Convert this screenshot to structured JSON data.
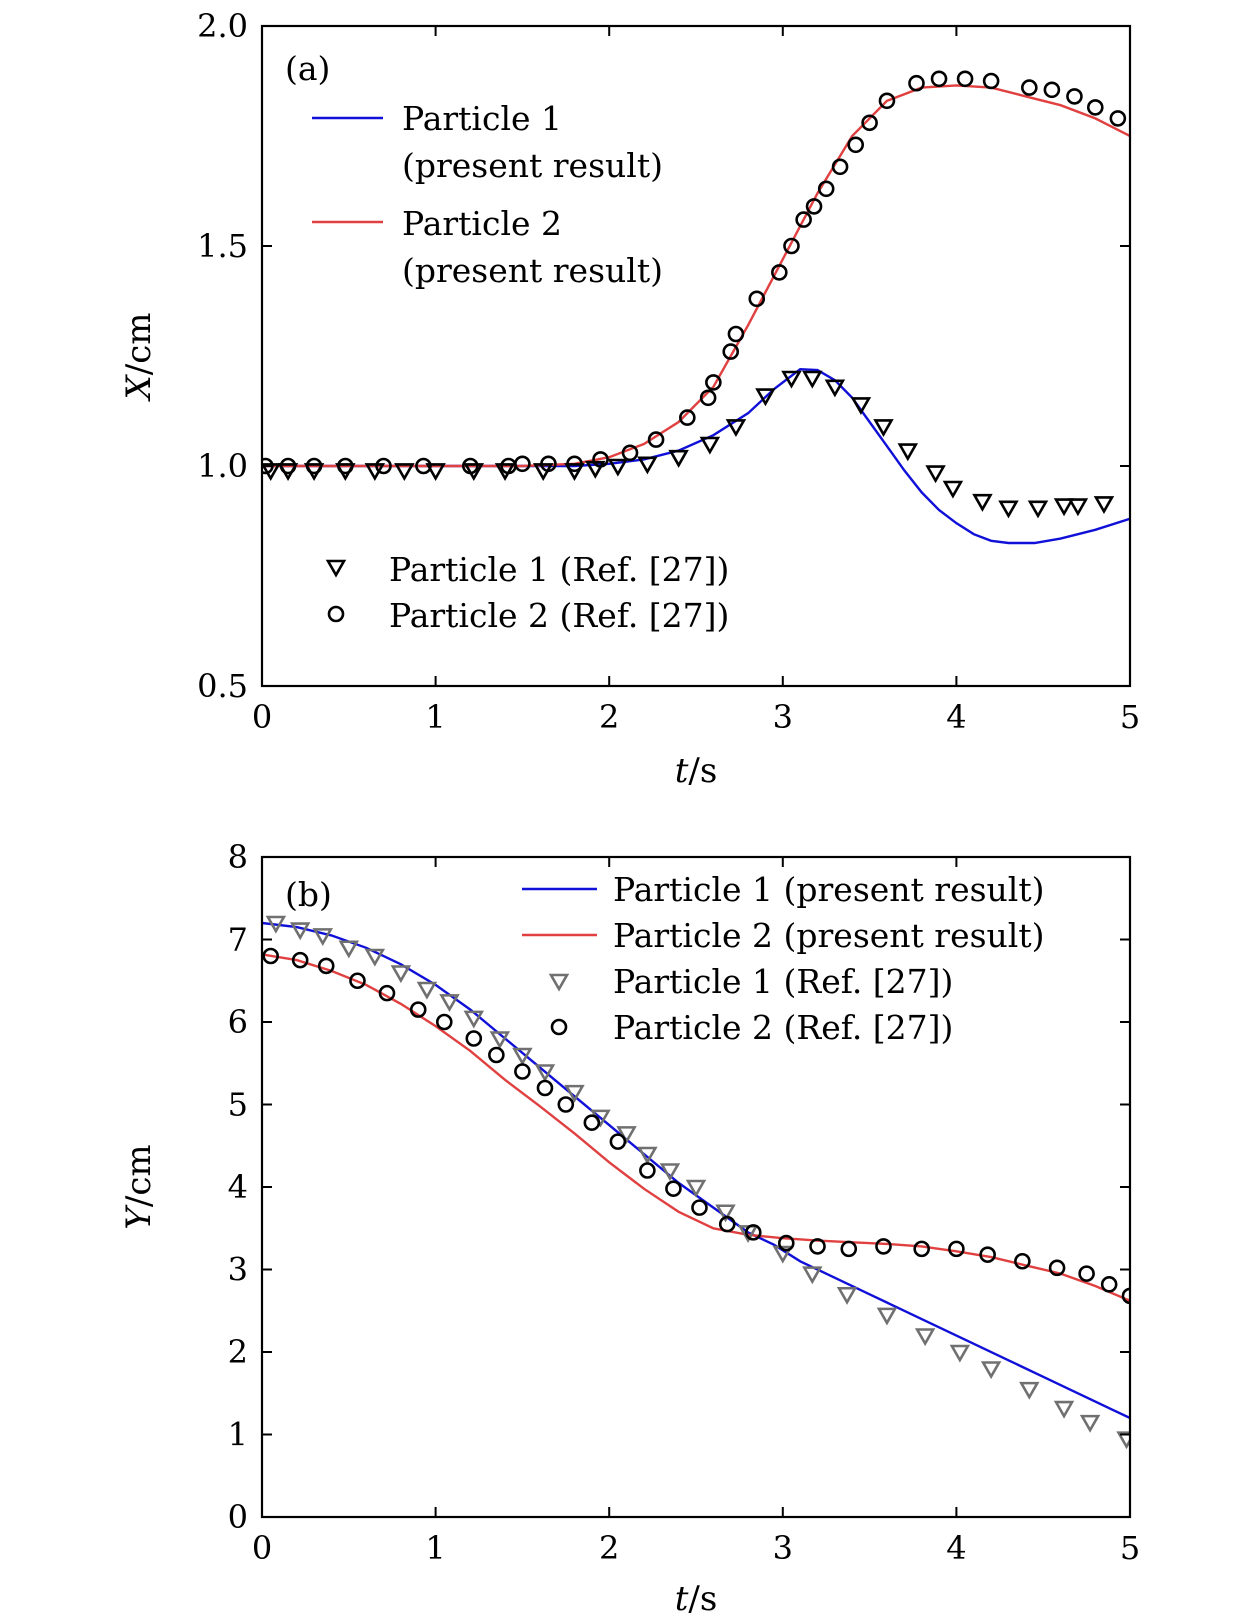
{
  "figure": {
    "colors": {
      "particle1_line": "#1010d8",
      "particle2_line": "#e04040",
      "marker_dark": "#000000",
      "marker_gray": "#707070"
    }
  },
  "chart_data": [
    {
      "type": "line",
      "panel_tag": "(a)",
      "xlabel_var": "t",
      "xlabel_unit": "/s",
      "ylabel_var": "X",
      "ylabel_unit": "/cm",
      "xlim": [
        0,
        5
      ],
      "ylim": [
        0.5,
        2.0
      ],
      "xticks": [
        0,
        1,
        2,
        3,
        4,
        5
      ],
      "xtick_labels": [
        "0",
        "1",
        "2",
        "3",
        "4",
        "5"
      ],
      "yticks": [
        0.5,
        1.0,
        1.5,
        2.0
      ],
      "ytick_labels": [
        "0.5",
        "1.0",
        "1.5",
        "2.0"
      ],
      "legend_lines": [
        {
          "key": "p1",
          "line1": "Particle 1",
          "line2": "(present result)"
        },
        {
          "key": "p2",
          "line1": "Particle 2",
          "line2": "(present result)"
        }
      ],
      "legend_markers": [
        {
          "key": "p1",
          "label": "Particle 1 (Ref. [27])"
        },
        {
          "key": "p2",
          "label": "Particle 2 (Ref. [27])"
        }
      ],
      "series": [
        {
          "name": "Particle 1 (present result)",
          "kind": "line",
          "color_key": "particle1_line",
          "x": [
            0,
            0.5,
            1.0,
            1.5,
            1.8,
            2.0,
            2.2,
            2.4,
            2.6,
            2.8,
            2.95,
            3.1,
            3.2,
            3.3,
            3.4,
            3.5,
            3.6,
            3.7,
            3.8,
            3.9,
            4.0,
            4.1,
            4.2,
            4.3,
            4.45,
            4.6,
            4.8,
            5.0
          ],
          "y": [
            1.0,
            1.0,
            1.0,
            1.0,
            1.0,
            1.005,
            1.015,
            1.035,
            1.07,
            1.12,
            1.175,
            1.22,
            1.218,
            1.195,
            1.155,
            1.1,
            1.045,
            0.99,
            0.94,
            0.9,
            0.87,
            0.845,
            0.83,
            0.825,
            0.825,
            0.835,
            0.855,
            0.88
          ]
        },
        {
          "name": "Particle 2 (present result)",
          "kind": "line",
          "color_key": "particle2_line",
          "x": [
            0,
            0.5,
            1.0,
            1.5,
            1.8,
            2.0,
            2.2,
            2.4,
            2.6,
            2.8,
            3.0,
            3.2,
            3.4,
            3.6,
            3.8,
            4.0,
            4.2,
            4.4,
            4.6,
            4.8,
            5.0
          ],
          "y": [
            1.0,
            1.0,
            1.0,
            1.0,
            1.005,
            1.02,
            1.05,
            1.1,
            1.18,
            1.32,
            1.47,
            1.62,
            1.75,
            1.83,
            1.86,
            1.865,
            1.86,
            1.84,
            1.82,
            1.79,
            1.75
          ]
        },
        {
          "name": "Particle 1 (Ref. [27])",
          "kind": "triangle",
          "color_key": "marker_dark",
          "x": [
            0.05,
            0.15,
            0.3,
            0.48,
            0.65,
            0.82,
            1.0,
            1.22,
            1.4,
            1.62,
            1.8,
            1.92,
            2.05,
            2.22,
            2.4,
            2.58,
            2.73,
            2.9,
            3.05,
            3.17,
            3.3,
            3.45,
            3.58,
            3.72,
            3.88,
            3.98,
            4.15,
            4.3,
            4.47,
            4.62,
            4.7,
            4.85
          ],
          "y": [
            0.99,
            0.99,
            0.99,
            0.99,
            0.99,
            0.99,
            0.99,
            0.99,
            0.99,
            0.99,
            0.99,
            0.995,
            1.0,
            1.005,
            1.02,
            1.05,
            1.09,
            1.16,
            1.2,
            1.2,
            1.18,
            1.14,
            1.09,
            1.035,
            0.985,
            0.95,
            0.92,
            0.905,
            0.905,
            0.91,
            0.91,
            0.915
          ]
        },
        {
          "name": "Particle 2 (Ref. [27])",
          "kind": "circle",
          "color_key": "marker_dark",
          "x": [
            0.02,
            0.15,
            0.3,
            0.48,
            0.7,
            0.93,
            1.2,
            1.42,
            1.5,
            1.65,
            1.8,
            1.95,
            2.12,
            2.27,
            2.45,
            2.57,
            2.6,
            2.7,
            2.73,
            2.85,
            2.98,
            3.05,
            3.12,
            3.18,
            3.25,
            3.33,
            3.42,
            3.5,
            3.6,
            3.77,
            3.9,
            4.05,
            4.2,
            4.42,
            4.55,
            4.68,
            4.8,
            4.93
          ],
          "y": [
            1.0,
            1.0,
            1.0,
            1.0,
            1.0,
            1.0,
            1.0,
            1.0,
            1.005,
            1.005,
            1.005,
            1.015,
            1.03,
            1.06,
            1.11,
            1.155,
            1.19,
            1.26,
            1.3,
            1.38,
            1.44,
            1.5,
            1.56,
            1.59,
            1.63,
            1.68,
            1.73,
            1.78,
            1.83,
            1.87,
            1.88,
            1.88,
            1.875,
            1.86,
            1.855,
            1.84,
            1.815,
            1.79
          ]
        }
      ]
    },
    {
      "type": "line",
      "panel_tag": "(b)",
      "xlabel_var": "t",
      "xlabel_unit": "/s",
      "ylabel_var": "Y",
      "ylabel_unit": "/cm",
      "xlim": [
        0,
        5
      ],
      "ylim": [
        0,
        8
      ],
      "xticks": [
        0,
        1,
        2,
        3,
        4,
        5
      ],
      "xtick_labels": [
        "0",
        "1",
        "2",
        "3",
        "4",
        "5"
      ],
      "yticks": [
        0,
        1,
        2,
        3,
        4,
        5,
        6,
        7,
        8
      ],
      "ytick_labels": [
        "0",
        "1",
        "2",
        "3",
        "4",
        "5",
        "6",
        "7",
        "8"
      ],
      "legend": [
        {
          "key": "p1_line",
          "label": "Particle 1 (present result)"
        },
        {
          "key": "p2_line",
          "label": "Particle 2 (present result)"
        },
        {
          "key": "p1_ref",
          "label": "Particle 1 (Ref. [27])"
        },
        {
          "key": "p2_ref",
          "label": "Particle 2 (Ref. [27])"
        }
      ],
      "series": [
        {
          "name": "Particle 1 (present result)",
          "kind": "line",
          "color_key": "particle1_line",
          "x": [
            0,
            0.2,
            0.4,
            0.6,
            0.8,
            1.0,
            1.2,
            1.4,
            1.6,
            1.8,
            2.0,
            2.2,
            2.4,
            2.6,
            2.8,
            2.95,
            3.1,
            3.3,
            3.5,
            3.7,
            3.9,
            4.1,
            4.3,
            4.5,
            4.7,
            4.9,
            5.0
          ],
          "y": [
            7.2,
            7.15,
            7.05,
            6.9,
            6.7,
            6.45,
            6.15,
            5.8,
            5.45,
            5.1,
            4.75,
            4.4,
            4.05,
            3.75,
            3.45,
            3.3,
            3.1,
            2.9,
            2.7,
            2.5,
            2.3,
            2.1,
            1.9,
            1.7,
            1.5,
            1.3,
            1.2
          ]
        },
        {
          "name": "Particle 2 (present result)",
          "kind": "line",
          "color_key": "particle2_line",
          "x": [
            0,
            0.2,
            0.4,
            0.6,
            0.8,
            1.0,
            1.2,
            1.4,
            1.6,
            1.8,
            2.0,
            2.2,
            2.4,
            2.6,
            2.8,
            3.0,
            3.2,
            3.4,
            3.6,
            3.8,
            4.0,
            4.2,
            4.4,
            4.6,
            4.8,
            5.0
          ],
          "y": [
            6.82,
            6.75,
            6.62,
            6.45,
            6.22,
            5.95,
            5.65,
            5.3,
            4.98,
            4.65,
            4.3,
            3.98,
            3.7,
            3.5,
            3.42,
            3.38,
            3.35,
            3.33,
            3.31,
            3.28,
            3.22,
            3.15,
            3.05,
            2.95,
            2.8,
            2.62
          ]
        },
        {
          "name": "Particle 1 (Ref. [27])",
          "kind": "triangle",
          "color_key": "marker_gray",
          "x": [
            0.08,
            0.22,
            0.35,
            0.5,
            0.65,
            0.8,
            0.95,
            1.08,
            1.22,
            1.37,
            1.5,
            1.63,
            1.8,
            1.95,
            2.1,
            2.22,
            2.35,
            2.5,
            2.67,
            2.8,
            3.0,
            3.17,
            3.37,
            3.6,
            3.82,
            4.02,
            4.2,
            4.42,
            4.62,
            4.77,
            4.98
          ],
          "y": [
            7.2,
            7.12,
            7.05,
            6.9,
            6.8,
            6.6,
            6.4,
            6.25,
            6.05,
            5.8,
            5.6,
            5.4,
            5.15,
            4.85,
            4.65,
            4.4,
            4.2,
            4.0,
            3.7,
            3.45,
            3.2,
            2.95,
            2.7,
            2.45,
            2.2,
            2.0,
            1.8,
            1.55,
            1.32,
            1.15,
            0.95
          ]
        },
        {
          "name": "Particle 2 (Ref. [27])",
          "kind": "circle",
          "color_key": "marker_dark",
          "x": [
            0.05,
            0.22,
            0.37,
            0.55,
            0.72,
            0.9,
            1.05,
            1.22,
            1.35,
            1.5,
            1.63,
            1.75,
            1.9,
            2.05,
            2.22,
            2.37,
            2.52,
            2.68,
            2.83,
            3.02,
            3.2,
            3.38,
            3.58,
            3.8,
            4.0,
            4.18,
            4.38,
            4.58,
            4.75,
            4.88,
            5.0
          ],
          "y": [
            6.8,
            6.75,
            6.68,
            6.5,
            6.35,
            6.15,
            6.0,
            5.8,
            5.6,
            5.4,
            5.2,
            5.0,
            4.78,
            4.55,
            4.2,
            3.98,
            3.75,
            3.55,
            3.45,
            3.32,
            3.28,
            3.25,
            3.28,
            3.25,
            3.25,
            3.18,
            3.1,
            3.02,
            2.95,
            2.82,
            2.68
          ]
        }
      ]
    }
  ]
}
